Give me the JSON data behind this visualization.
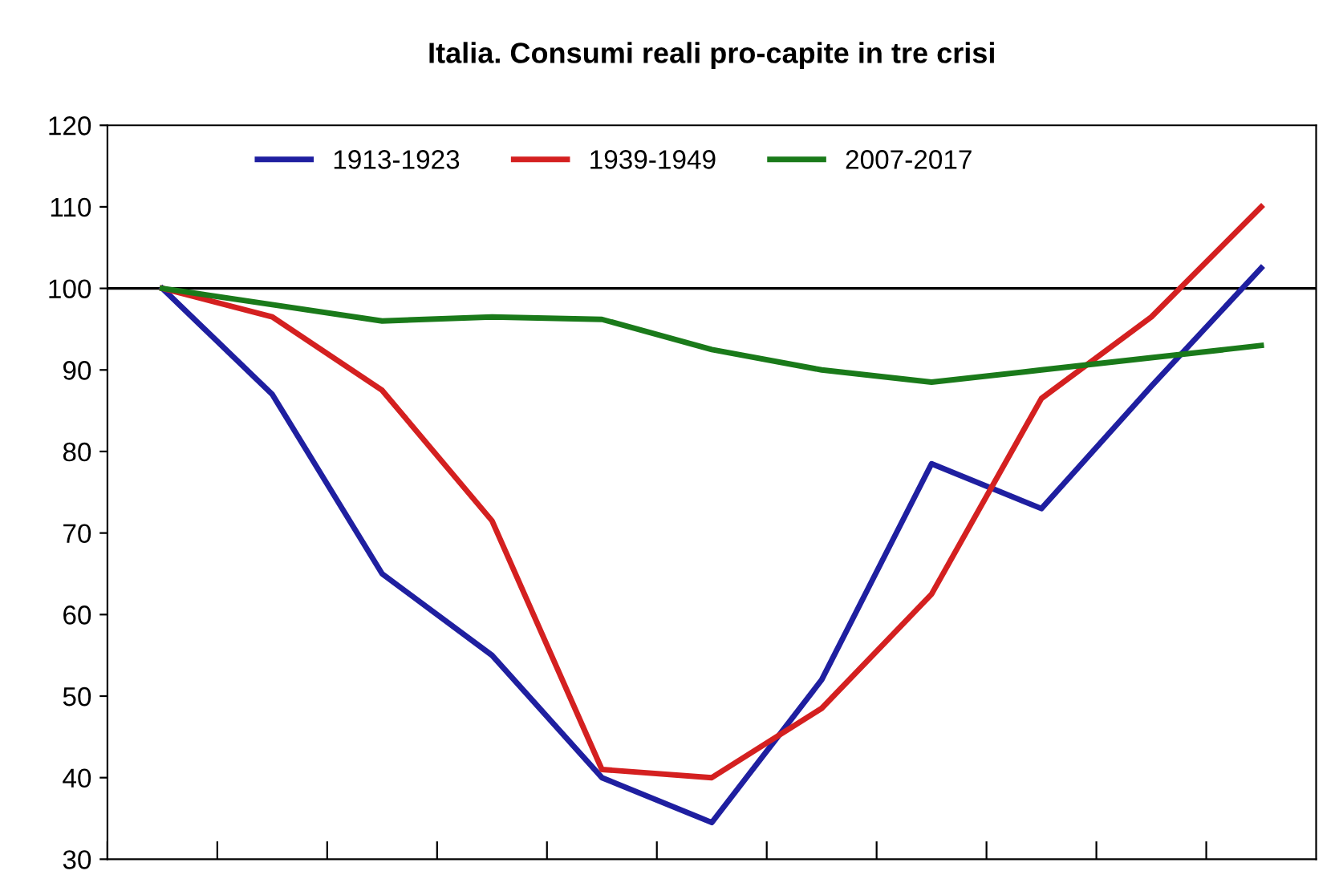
{
  "chart_data": {
    "type": "line",
    "title": "Italia. Consumi reali pro-capite in tre crisi",
    "categories": [
      null,
      null,
      null,
      null,
      null,
      null,
      null,
      null,
      null,
      null,
      null
    ],
    "series": [
      {
        "name": "1913-1923",
        "color": "#1f1fa0",
        "values": [
          100,
          87,
          65,
          55,
          40,
          34.5,
          52,
          78.5,
          73,
          88,
          102.5
        ]
      },
      {
        "name": "1939-1949",
        "color": "#d42020",
        "values": [
          100,
          96.5,
          87.5,
          71.5,
          41,
          40,
          48.5,
          62.5,
          86.5,
          96.5,
          110
        ]
      },
      {
        "name": "2007-2017",
        "color": "#1a7a1a",
        "values": [
          100,
          98,
          96,
          96.5,
          96.2,
          92.5,
          90,
          88.5,
          90,
          91.5,
          93
        ]
      }
    ],
    "ylim": [
      30,
      120
    ],
    "yticks": [
      30,
      40,
      50,
      60,
      70,
      80,
      90,
      100,
      110,
      120
    ],
    "ref_lines": [
      {
        "axis": "y",
        "value": 100,
        "color": "#000000"
      }
    ],
    "grid": false,
    "legend": "top",
    "marker": "none",
    "line_style": "solid",
    "tick_labels": "y"
  }
}
